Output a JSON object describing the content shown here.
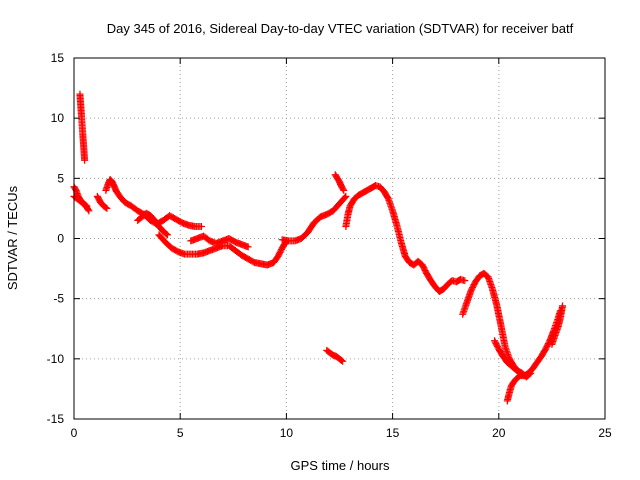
{
  "chart_data": {
    "type": "scatter",
    "title": "Day 345 of 2016, Sidereal Day-to-day VTEC variation (SDTVAR) for receiver batf",
    "xlabel": "GPS time / hours",
    "ylabel": "SDTVAR / TECUs",
    "xlim": [
      0,
      25
    ],
    "ylim": [
      -15,
      15
    ],
    "xticks": [
      0,
      5,
      10,
      15,
      20,
      25
    ],
    "yticks": [
      -15,
      -10,
      -5,
      0,
      5,
      10,
      15
    ],
    "grid": true,
    "marker": "+",
    "series": [
      {
        "name": "SDTVAR",
        "color": "#ff0000",
        "segments": [
          {
            "x": [
              0.0,
              0.1,
              0.2,
              0.3,
              0.4,
              0.5,
              0.6,
              0.7
            ],
            "y": [
              4.3,
              4.0,
              3.5,
              3.2,
              3.0,
              2.8,
              2.6,
              2.3
            ]
          },
          {
            "x": [
              0.0,
              0.15,
              0.3,
              0.45,
              0.6
            ],
            "y": [
              3.5,
              3.3,
              3.1,
              2.9,
              2.7
            ]
          },
          {
            "x": [
              0.28,
              0.3,
              0.32,
              0.34,
              0.36,
              0.38,
              0.4,
              0.42,
              0.44,
              0.46,
              0.48,
              0.5
            ],
            "y": [
              12.0,
              11.5,
              11.0,
              10.5,
              10.0,
              9.5,
              9.0,
              8.5,
              8.0,
              7.5,
              7.0,
              6.5
            ]
          },
          {
            "x": [
              1.1,
              1.25,
              1.4,
              1.55
            ],
            "y": [
              3.5,
              3.0,
              2.7,
              2.5
            ]
          },
          {
            "x": [
              1.5,
              1.6,
              1.7,
              1.8,
              1.9,
              2.0,
              2.2,
              2.4,
              2.7,
              3.0,
              3.3,
              3.6,
              3.9,
              4.2,
              4.5,
              4.8,
              5.1,
              5.4,
              5.7,
              6.0
            ],
            "y": [
              4.0,
              4.5,
              4.9,
              4.7,
              4.3,
              3.9,
              3.4,
              3.0,
              2.7,
              2.3,
              2.0,
              1.5,
              1.2,
              1.5,
              1.9,
              1.6,
              1.3,
              1.1,
              1.0,
              1.0
            ]
          },
          {
            "x": [
              3.0,
              3.2,
              3.4,
              3.6,
              3.8,
              4.0,
              4.2,
              4.4
            ],
            "y": [
              1.5,
              1.8,
              2.1,
              1.9,
              1.5,
              1.0,
              0.6,
              0.3
            ]
          },
          {
            "x": [
              4.0,
              4.3,
              4.6,
              4.9,
              5.2,
              5.5,
              5.8,
              6.1,
              6.4,
              6.7,
              7.0,
              7.3,
              7.6,
              7.9,
              8.2,
              8.5,
              8.8,
              9.1,
              9.4,
              9.6,
              9.8,
              10.0
            ],
            "y": [
              0.3,
              -0.3,
              -0.8,
              -1.1,
              -1.3,
              -1.3,
              -1.3,
              -1.2,
              -1.0,
              -0.8,
              -0.6,
              -0.6,
              -1.0,
              -1.4,
              -1.7,
              -2.0,
              -2.1,
              -2.2,
              -2.0,
              -1.5,
              -0.8,
              -0.2
            ]
          },
          {
            "x": [
              5.5,
              5.8,
              6.1,
              6.4,
              6.7,
              7.0,
              7.3,
              7.6,
              7.9,
              8.2
            ],
            "y": [
              -0.2,
              0.0,
              0.2,
              -0.2,
              -0.4,
              -0.2,
              0.0,
              -0.3,
              -0.5,
              -0.7
            ]
          },
          {
            "x": [
              9.8,
              10.1,
              10.4,
              10.7,
              11.0,
              11.3,
              11.6,
              11.9,
              12.2,
              12.5,
              12.8
            ],
            "y": [
              -0.1,
              -0.2,
              -0.2,
              0.0,
              0.5,
              1.3,
              1.8,
              2.0,
              2.3,
              2.9,
              3.5
            ]
          },
          {
            "x": [
              11.9,
              12.05,
              12.2,
              12.35,
              12.5,
              12.65
            ],
            "y": [
              -9.3,
              -9.5,
              -9.7,
              -9.8,
              -10.0,
              -10.2
            ]
          },
          {
            "x": [
              12.3,
              12.4,
              12.5,
              12.6,
              12.7
            ],
            "y": [
              5.3,
              5.0,
              4.7,
              4.3,
              4.0
            ]
          },
          {
            "x": [
              12.8,
              12.9,
              13.0,
              13.2,
              13.4,
              13.6,
              13.8,
              14.0,
              14.2,
              14.4,
              14.6,
              14.8,
              15.0,
              15.2,
              15.4,
              15.6,
              15.8,
              16.0,
              16.2,
              16.4,
              16.6,
              16.8,
              17.0,
              17.2,
              17.4,
              17.6,
              17.8,
              18.0,
              18.2,
              18.4
            ],
            "y": [
              1.0,
              2.0,
              2.7,
              3.3,
              3.6,
              3.8,
              4.0,
              4.2,
              4.4,
              4.3,
              3.9,
              3.3,
              2.3,
              1.1,
              -0.3,
              -1.5,
              -2.0,
              -2.2,
              -1.9,
              -2.2,
              -2.9,
              -3.5,
              -4.0,
              -4.4,
              -4.2,
              -3.8,
              -3.5,
              -3.6,
              -3.4,
              -3.5
            ]
          },
          {
            "x": [
              18.3,
              18.5,
              18.7,
              18.9,
              19.1,
              19.3,
              19.5,
              19.7,
              19.9,
              20.1,
              20.3,
              20.5,
              20.7,
              20.9,
              21.1,
              21.3,
              21.5
            ],
            "y": [
              -6.3,
              -5.3,
              -4.3,
              -3.6,
              -3.1,
              -2.9,
              -3.2,
              -4.2,
              -5.5,
              -7.2,
              -9.0,
              -10.0,
              -10.6,
              -11.0,
              -11.2,
              -11.5,
              -11.2
            ]
          },
          {
            "x": [
              19.8,
              20.0,
              20.2,
              20.4,
              20.6,
              20.8,
              21.0,
              21.2
            ],
            "y": [
              -8.5,
              -9.2,
              -9.8,
              -10.3,
              -10.6,
              -10.9,
              -11.2,
              -11.4
            ]
          },
          {
            "x": [
              20.4,
              20.5,
              20.6,
              20.8,
              21.0,
              21.2,
              21.4,
              21.6,
              21.8,
              22.0,
              22.2,
              22.4,
              22.6,
              22.8,
              22.9
            ],
            "y": [
              -13.5,
              -12.8,
              -12.2,
              -11.7,
              -11.4,
              -11.4,
              -11.2,
              -10.8,
              -10.3,
              -9.8,
              -9.2,
              -8.5,
              -7.6,
              -6.6,
              -6.0
            ]
          },
          {
            "x": [
              22.5,
              22.6,
              22.7,
              22.8,
              22.9,
              23.0
            ],
            "y": [
              -8.8,
              -8.3,
              -7.8,
              -7.3,
              -6.6,
              -5.6
            ]
          }
        ]
      }
    ]
  }
}
